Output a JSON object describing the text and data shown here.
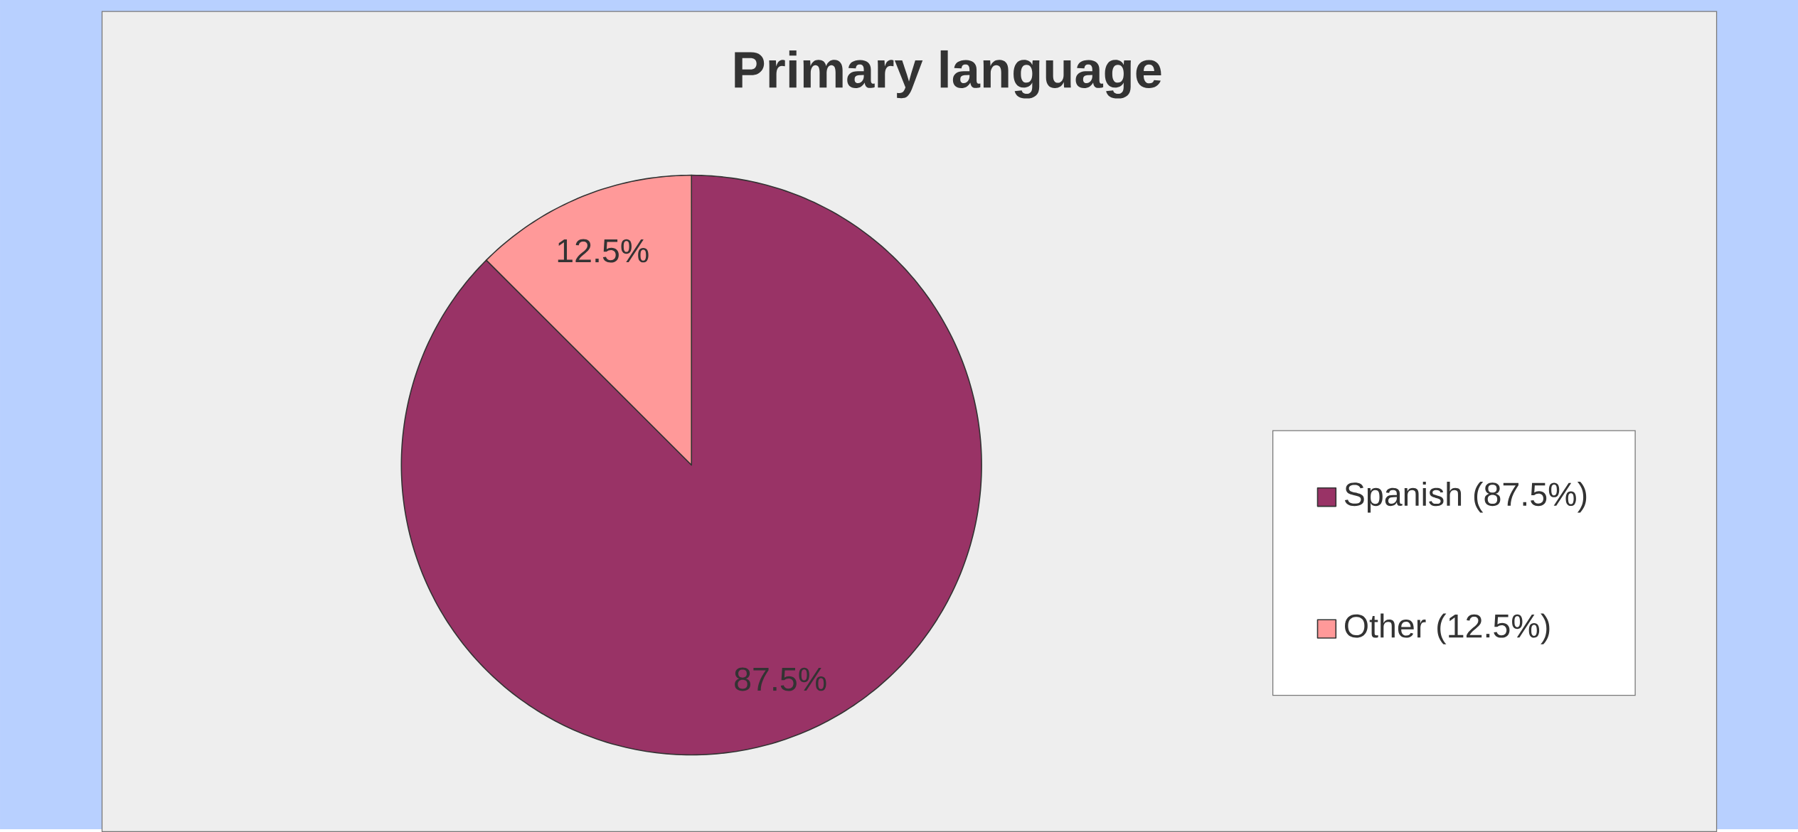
{
  "chart_data": {
    "type": "pie",
    "title": "Primary language",
    "categories": [
      "Spanish (87.5%)",
      "Other (12.5%)"
    ],
    "values": [
      87.5,
      12.5
    ],
    "value_labels": [
      "87.5%",
      "12.5%"
    ],
    "colors": [
      "#993366",
      "#ff9999"
    ],
    "legend": "right"
  }
}
